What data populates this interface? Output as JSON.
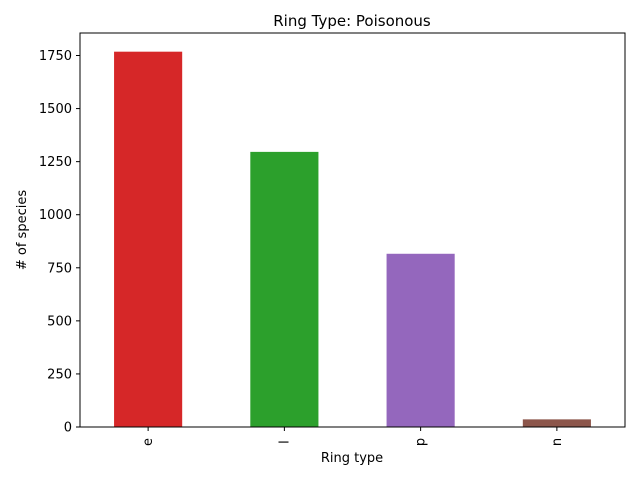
{
  "chart_data": {
    "type": "bar",
    "title": "Ring Type: Poisonous",
    "xlabel": "Ring type",
    "ylabel": "# of species",
    "categories": [
      "e",
      "l",
      "p",
      "n"
    ],
    "values": [
      1768,
      1296,
      816,
      36
    ],
    "colors": [
      "#d62728",
      "#2ca02c",
      "#9467bd",
      "#8c564b"
    ],
    "ylim": [
      0,
      1856
    ],
    "yticks": [
      0,
      250,
      500,
      750,
      1000,
      1250,
      1500,
      1750
    ],
    "ytick_labels": [
      "0",
      "250",
      "500",
      "750",
      "1000",
      "1250",
      "1500",
      "1750"
    ],
    "grid": false,
    "legend": "none"
  }
}
